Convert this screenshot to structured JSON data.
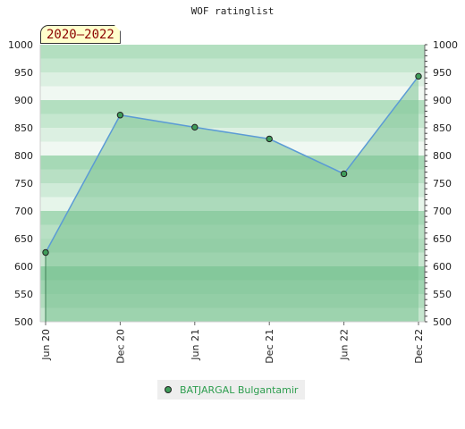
{
  "chart_data": {
    "type": "area",
    "title": "WOF ratinglist",
    "period": "2020–2022",
    "x": [
      "Jun 20",
      "Dec 20",
      "Jun 21",
      "Dec 21",
      "Jun 22",
      "Dec 22"
    ],
    "series": [
      {
        "name": "BATJARGAL Bulgantamir",
        "values": [
          625,
          873,
          851,
          830,
          767,
          943
        ]
      }
    ],
    "ylim": [
      500,
      1000
    ],
    "yticks": [
      500,
      550,
      600,
      650,
      700,
      750,
      800,
      850,
      900,
      950,
      1000
    ],
    "grid": true,
    "legend": "bottom",
    "colors": {
      "line": "#5b9bd5",
      "area": "#7cc394",
      "marker": "#3f9c5a"
    }
  }
}
